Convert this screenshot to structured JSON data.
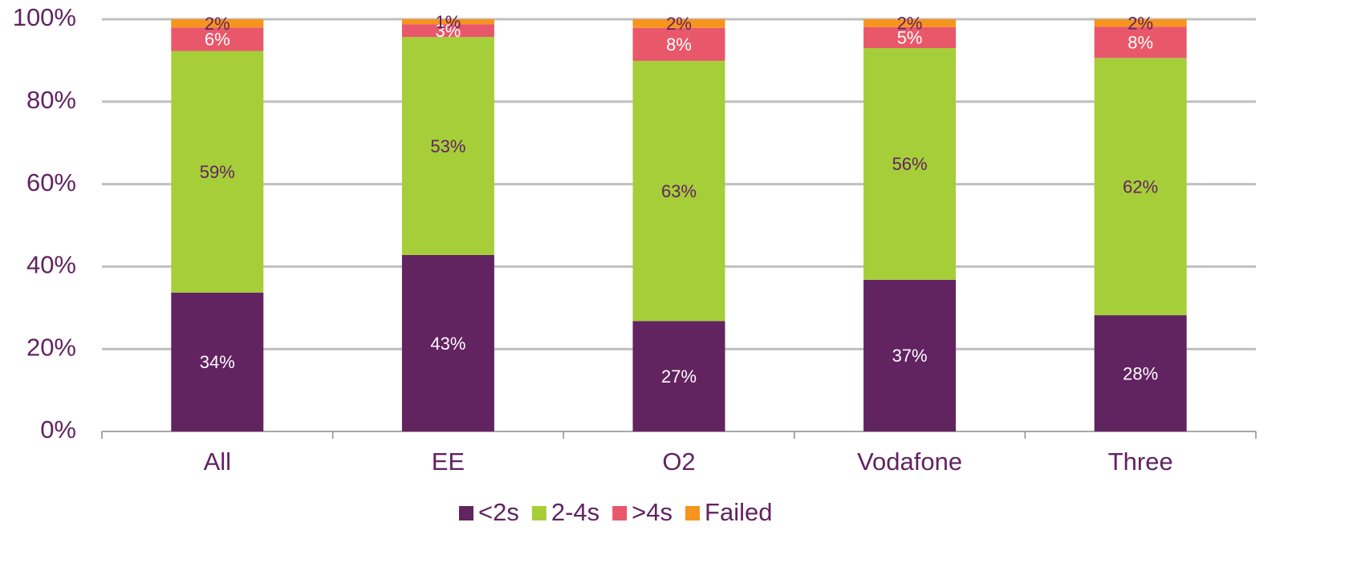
{
  "chart_data": {
    "type": "stacked_bar",
    "categories": [
      "All",
      "EE",
      "O2",
      "Vodafone",
      "Three"
    ],
    "series": [
      {
        "name": "<2s",
        "color": "#622361",
        "values": [
          33.7,
          42.8,
          26.8,
          36.8,
          28.2
        ],
        "value_labels": [
          "34%",
          "43%",
          "27%",
          "37%",
          "28%"
        ]
      },
      {
        "name": "2-4s",
        "color": "#a6ce39",
        "values": [
          58.6,
          52.9,
          63.1,
          56.2,
          62.4
        ],
        "value_labels": [
          "59%",
          "53%",
          "63%",
          "56%",
          "62%"
        ]
      },
      {
        "name": ">4s",
        "color": "#e8586a",
        "values": [
          5.7,
          3.1,
          8.0,
          5.1,
          7.6
        ],
        "value_labels": [
          "6%",
          "3%",
          "8%",
          "5%",
          "8%"
        ]
      },
      {
        "name": "Failed",
        "color": "#f7941d",
        "values": [
          2.0,
          1.2,
          2.1,
          1.9,
          1.8
        ],
        "value_labels": [
          "2%",
          "1%",
          "2%",
          "2%",
          "2%"
        ]
      }
    ],
    "ylim": [
      0,
      100
    ],
    "yticks": [
      {
        "value": 0,
        "label": "0%"
      },
      {
        "value": 20,
        "label": "20%"
      },
      {
        "value": 40,
        "label": "40%"
      },
      {
        "value": 60,
        "label": "60%"
      },
      {
        "value": 80,
        "label": "80%"
      },
      {
        "value": 100,
        "label": "100%"
      }
    ],
    "grid": true,
    "legend": "bottom"
  }
}
